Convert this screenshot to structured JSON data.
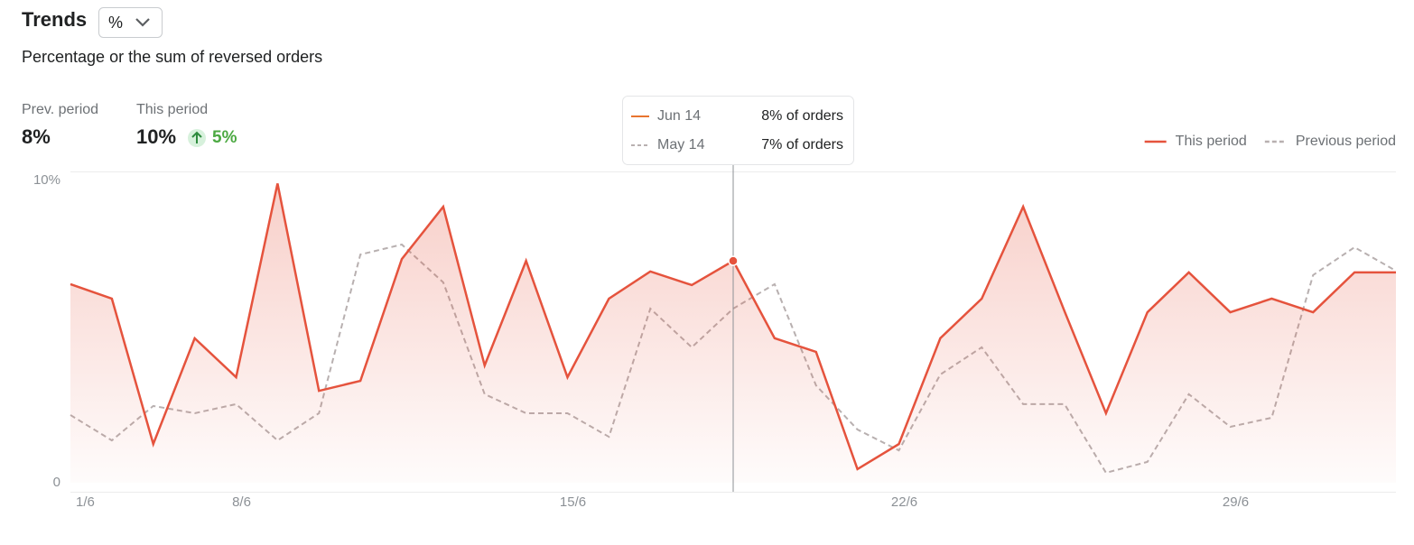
{
  "header": {
    "title": "Trends",
    "dropdown": "%",
    "subtitle": "Percentage or the sum of reversed orders"
  },
  "stats": {
    "prev_label": "Prev. period",
    "prev_value": "8%",
    "this_label": "This period",
    "this_value": "10%",
    "change": "5%"
  },
  "tooltip": {
    "rows": [
      {
        "date": "Jun 14",
        "text": "8% of orders"
      },
      {
        "date": "May 14",
        "text": "7% of orders"
      }
    ]
  },
  "chart_data": {
    "type": "line",
    "categories": [
      "1/6",
      null,
      null,
      null,
      "8/6",
      null,
      null,
      null,
      null,
      null,
      null,
      null,
      "15/6",
      null,
      null,
      null,
      null,
      null,
      null,
      null,
      "22/6",
      null,
      null,
      null,
      null,
      null,
      null,
      null,
      "29/6",
      null,
      null,
      null,
      null
    ],
    "series": [
      {
        "name": "This period",
        "color": "#e5533d",
        "values": [
          6.57,
          6.09,
          1.28,
          4.78,
          3.49,
          9.9,
          3.04,
          3.37,
          7.4,
          9.13,
          3.88,
          7.34,
          3.49,
          6.09,
          6.99,
          6.54,
          7.34,
          4.78,
          4.33,
          0.45,
          1.28,
          4.78,
          6.09,
          9.13,
          5.67,
          2.3,
          5.64,
          6.96,
          5.64,
          6.09,
          5.64,
          6.96,
          6.96
        ]
      },
      {
        "name": "Previous period",
        "color": "#b8b0b0",
        "values": [
          2.24,
          1.4,
          2.54,
          2.3,
          2.6,
          1.4,
          2.3,
          7.55,
          7.88,
          6.63,
          2.93,
          2.3,
          2.3,
          1.52,
          5.76,
          4.48,
          5.76,
          6.57,
          3.22,
          1.76,
          1.07,
          3.58,
          4.48,
          2.6,
          2.6,
          0.33,
          0.69,
          2.93,
          1.85,
          2.15,
          6.87,
          7.79,
          7.01
        ]
      }
    ],
    "ylim": [
      0,
      10
    ],
    "yticks": [
      0,
      {
        "value": 10,
        "label": "10%"
      }
    ],
    "legend": "top-right",
    "highlight_index": 16
  }
}
